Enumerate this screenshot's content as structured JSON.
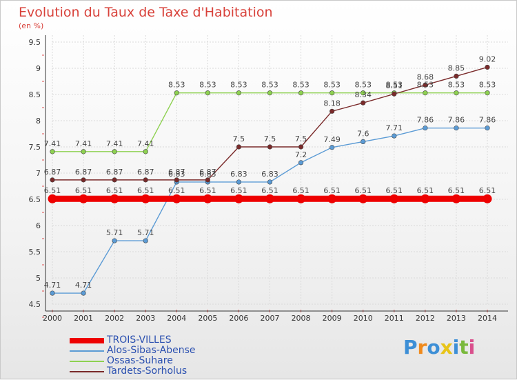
{
  "title": "Evolution du Taux de Taxe d'Habitation",
  "subtitle": "(en %)",
  "chart_data": {
    "type": "line",
    "title": "Evolution du Taux de Taxe d'Habitation",
    "ylabel": "(en %)",
    "x": [
      "2000",
      "2001",
      "2002",
      "2003",
      "2004",
      "2005",
      "2006",
      "2007",
      "2008",
      "2009",
      "2010",
      "2011",
      "2012",
      "2013",
      "2014"
    ],
    "ylim": [
      4.5,
      9.5
    ],
    "yticks": [
      "4.5",
      "5",
      "5.5",
      "6",
      "6.5",
      "7",
      "7.5",
      "8",
      "8.5",
      "9",
      "9.5"
    ],
    "grid": true,
    "legend_position": "bottom-left",
    "series": [
      {
        "name": "TROIS-VILLES",
        "color": "#ee0000",
        "width": "thick",
        "values": [
          6.51,
          6.51,
          6.51,
          6.51,
          6.51,
          6.51,
          6.51,
          6.51,
          6.51,
          6.51,
          6.51,
          6.51,
          6.51,
          6.51,
          6.51
        ],
        "labels": [
          "6.51",
          "6.51",
          "6.51",
          "6.51",
          "6.51",
          "6.51",
          "6.51",
          "6.51",
          "6.51",
          "6.51",
          "6.51",
          "6.51",
          "6.51",
          "6.51",
          "6.51"
        ]
      },
      {
        "name": "Alos-Sibas-Abense",
        "color": "#5b9bd5",
        "width": "thin",
        "values": [
          4.71,
          4.71,
          5.71,
          5.71,
          6.83,
          6.83,
          6.83,
          6.83,
          7.2,
          7.49,
          7.6,
          7.71,
          7.86,
          7.86,
          7.86
        ],
        "labels": [
          "4.71",
          "4.71",
          "5.71",
          "5.71",
          "6.83",
          "6.83",
          "6.83",
          "6.83",
          "7.2",
          "7.49",
          "7.6",
          "7.71",
          "7.86",
          "7.86",
          "7.86"
        ]
      },
      {
        "name": "Ossas-Suhare",
        "color": "#8ed151",
        "width": "thin",
        "values": [
          7.41,
          7.41,
          7.41,
          7.41,
          8.53,
          8.53,
          8.53,
          8.53,
          8.53,
          8.53,
          8.53,
          8.53,
          8.53,
          8.53,
          8.53
        ],
        "labels": [
          "7.41",
          "7.41",
          "7.41",
          "7.41",
          "8.53",
          "8.53",
          "8.53",
          "8.53",
          "8.53",
          "8.53",
          "8.53",
          "8.53",
          "8.53",
          "8.53",
          "8.53"
        ]
      },
      {
        "name": "Tardets-Sorholus",
        "color": "#7a2a2a",
        "width": "thin",
        "values": [
          6.87,
          6.87,
          6.87,
          6.87,
          6.87,
          6.87,
          7.5,
          7.5,
          7.5,
          8.18,
          8.34,
          8.51,
          8.68,
          8.85,
          9.02
        ],
        "labels": [
          "6.87",
          "6.87",
          "6.87",
          "6.87",
          "6.87",
          "6.87",
          "7.5",
          "7.5",
          "7.5",
          "8.18",
          "8.34",
          "8.51",
          "8.68",
          "8.85",
          "9.02"
        ]
      }
    ]
  },
  "logo": {
    "letters": [
      "P",
      "r",
      "o",
      "x",
      "i",
      "t",
      "i"
    ],
    "colors": [
      "#3d8fd6",
      "#f08a1c",
      "#3d8fd6",
      "#e8c418",
      "#3d8fd6",
      "#79b93c",
      "#d94f8c"
    ]
  }
}
